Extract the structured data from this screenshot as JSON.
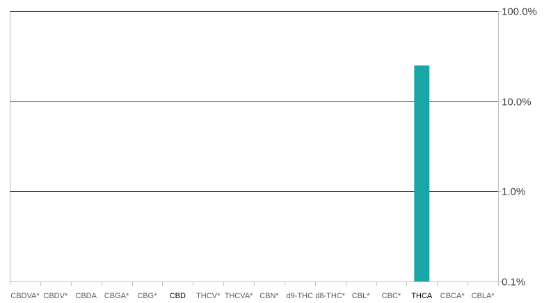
{
  "chart_data": {
    "type": "bar",
    "title": "",
    "xlabel": "",
    "ylabel": "",
    "y_scale": "log",
    "ylim": [
      0.1,
      100
    ],
    "y_ticks": [
      {
        "value": 100,
        "label": "100.0%"
      },
      {
        "value": 10,
        "label": "10.0%"
      },
      {
        "value": 1,
        "label": "1.0%"
      },
      {
        "value": 0.1,
        "label": "0.1%"
      }
    ],
    "y_axis_side": "right",
    "grid": true,
    "legend": "none",
    "categories": [
      "CBDVA*",
      "CBDV*",
      "CBDA",
      "CBGA*",
      "CBG*",
      "CBD",
      "THCV*",
      "THCVA*",
      "CBN*",
      "d9-THC",
      "d8-THC*",
      "CBL*",
      "CBC*",
      "THCA",
      "CBCA*",
      "CBLA*"
    ],
    "highlighted_categories": [
      "CBD",
      "THCA"
    ],
    "values": [
      null,
      null,
      null,
      null,
      null,
      null,
      null,
      null,
      null,
      null,
      null,
      null,
      null,
      24.9,
      null,
      null
    ],
    "bar_color": "#1aa6a6"
  }
}
